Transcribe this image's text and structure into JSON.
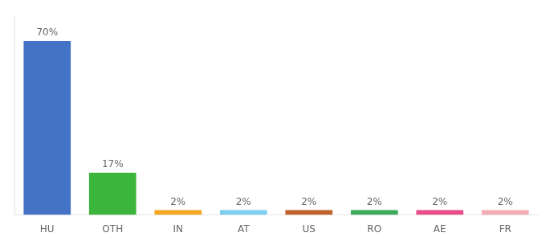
{
  "chart_data": {
    "type": "bar",
    "categories": [
      "HU",
      "OTH",
      "IN",
      "AT",
      "US",
      "RO",
      "AE",
      "FR"
    ],
    "values": [
      70,
      17,
      2,
      2,
      2,
      2,
      2,
      2
    ],
    "value_labels": [
      "70%",
      "17%",
      "2%",
      "2%",
      "2%",
      "2%",
      "2%",
      "2%"
    ],
    "colors": [
      "#4472c4",
      "#3cb53d",
      "#f5a623",
      "#7ecfed",
      "#c0622b",
      "#3daa5a",
      "#e84d8a",
      "#f4adb4"
    ],
    "ylim": [
      0,
      80
    ],
    "grid": false,
    "data_labels": true,
    "tick_labels": "x"
  }
}
